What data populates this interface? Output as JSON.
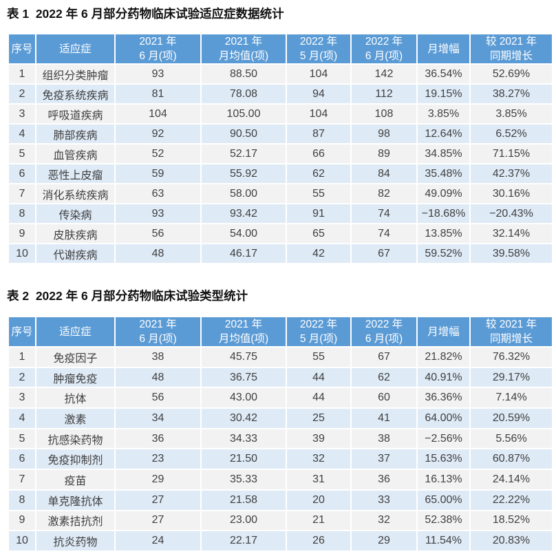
{
  "colors": {
    "header_bg": "#5B9BD5",
    "row_odd_bg": "#F2F2F2",
    "row_even_bg": "#DEEAF6",
    "header_text": "#FFFFFF",
    "body_text": "#3F3F3F",
    "title_text": "#111111"
  },
  "tables": [
    {
      "title": "表 1  2022 年 6 月部分药物临床试验适应症数据统计",
      "header": [
        [
          "序号"
        ],
        [
          "适应症"
        ],
        [
          "2021 年",
          "6 月(项)"
        ],
        [
          "2021 年",
          "月均值(项)"
        ],
        [
          "2022 年",
          "5 月(项)"
        ],
        [
          "2022 年",
          "6 月(项)"
        ],
        [
          "月增幅"
        ],
        [
          "较 2021 年",
          "同期增长"
        ]
      ],
      "rows": [
        [
          "1",
          "组织分类肿瘤",
          "93",
          "88.50",
          "104",
          "142",
          "36.54%",
          "52.69%"
        ],
        [
          "2",
          "免疫系统疾病",
          "81",
          "78.08",
          "94",
          "112",
          "19.15%",
          "38.27%"
        ],
        [
          "3",
          "呼吸道疾病",
          "104",
          "105.00",
          "104",
          "108",
          "3.85%",
          "3.85%"
        ],
        [
          "4",
          "肺部疾病",
          "92",
          "90.50",
          "87",
          "98",
          "12.64%",
          "6.52%"
        ],
        [
          "5",
          "血管疾病",
          "52",
          "52.17",
          "66",
          "89",
          "34.85%",
          "71.15%"
        ],
        [
          "6",
          "恶性上皮瘤",
          "59",
          "55.92",
          "62",
          "84",
          "35.48%",
          "42.37%"
        ],
        [
          "7",
          "消化系统疾病",
          "63",
          "58.00",
          "55",
          "82",
          "49.09%",
          "30.16%"
        ],
        [
          "8",
          "传染病",
          "93",
          "93.42",
          "91",
          "74",
          "−18.68%",
          "−20.43%"
        ],
        [
          "9",
          "皮肤疾病",
          "56",
          "54.00",
          "65",
          "74",
          "13.85%",
          "32.14%"
        ],
        [
          "10",
          "代谢疾病",
          "48",
          "46.17",
          "42",
          "67",
          "59.52%",
          "39.58%"
        ]
      ]
    },
    {
      "title": "表 2  2022 年 6 月部分药物临床试验类型统计",
      "header": [
        [
          "序号"
        ],
        [
          "适应症"
        ],
        [
          "2021 年",
          "6 月(项)"
        ],
        [
          "2021 年",
          "月均值(项)"
        ],
        [
          "2022 年",
          "5 月(项)"
        ],
        [
          "2022 年",
          "6 月(项)"
        ],
        [
          "月增幅"
        ],
        [
          "较 2021 年",
          "同期增长"
        ]
      ],
      "rows": [
        [
          "1",
          "免疫因子",
          "38",
          "45.75",
          "55",
          "67",
          "21.82%",
          "76.32%"
        ],
        [
          "2",
          "肿瘤免疫",
          "48",
          "36.75",
          "44",
          "62",
          "40.91%",
          "29.17%"
        ],
        [
          "3",
          "抗体",
          "56",
          "43.00",
          "44",
          "60",
          "36.36%",
          "7.14%"
        ],
        [
          "4",
          "激素",
          "34",
          "30.42",
          "25",
          "41",
          "64.00%",
          "20.59%"
        ],
        [
          "5",
          "抗感染药物",
          "36",
          "34.33",
          "39",
          "38",
          "−2.56%",
          "5.56%"
        ],
        [
          "6",
          "免疫抑制剂",
          "23",
          "21.50",
          "32",
          "37",
          "15.63%",
          "60.87%"
        ],
        [
          "7",
          "疫苗",
          "29",
          "35.33",
          "31",
          "36",
          "16.13%",
          "24.14%"
        ],
        [
          "8",
          "单克隆抗体",
          "27",
          "21.58",
          "20",
          "33",
          "65.00%",
          "22.22%"
        ],
        [
          "9",
          "激素拮抗剂",
          "27",
          "23.00",
          "21",
          "32",
          "52.38%",
          "18.52%"
        ],
        [
          "10",
          "抗炎药物",
          "24",
          "22.17",
          "26",
          "29",
          "11.54%",
          "20.83%"
        ]
      ]
    }
  ]
}
